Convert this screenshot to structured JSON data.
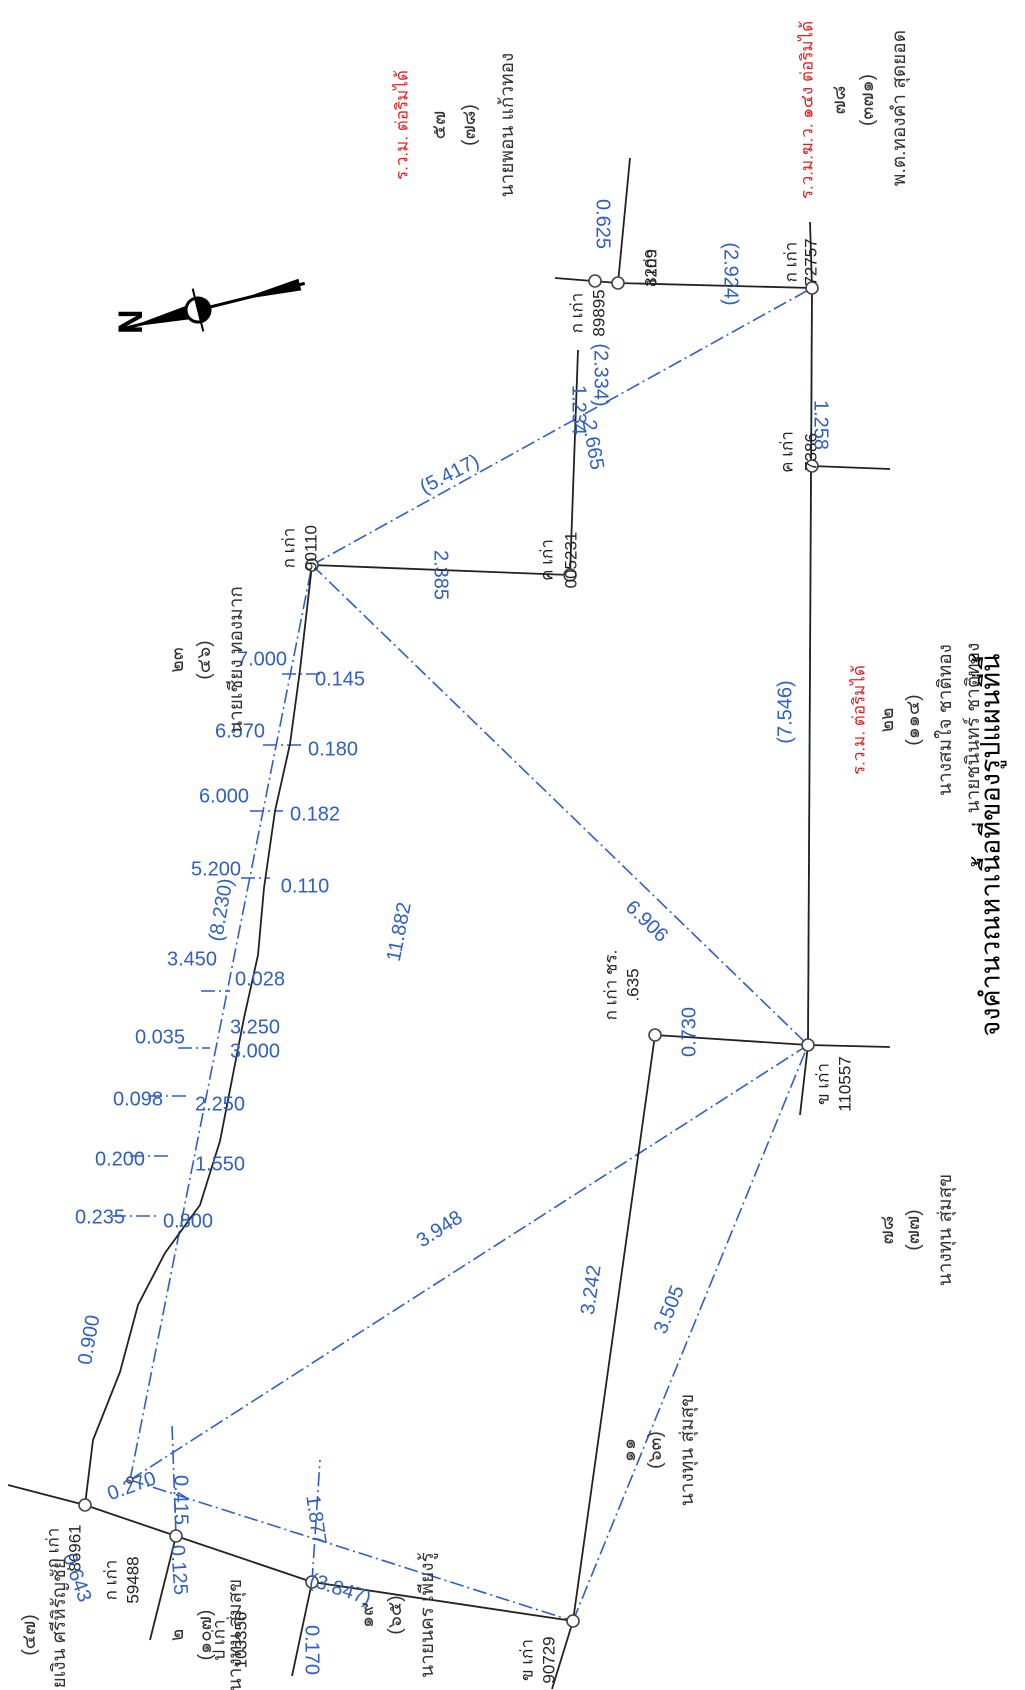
{
  "question": "จงคำนวณหาเนื้อที่ของรูปแผนที่นี้",
  "colors": {
    "boundary": "#222222",
    "survey": "#2f5fc4",
    "note": "#e02020",
    "owner": "#333333"
  },
  "north_arrow": {
    "icon": "north-arrow-icon",
    "letter": "N"
  },
  "stations": [
    {
      "label": "ก เก่า",
      "number": "89895"
    },
    {
      "label": "ง เก่า",
      "number": "3209"
    },
    {
      "label": "ก เก่า",
      "number": "72757"
    },
    {
      "label": "ค เก่า",
      "number": "7386"
    },
    {
      "label": "ค เก่า",
      "number": "005231"
    },
    {
      "label": "ก เก่า",
      "number": "90110"
    },
    {
      "label": "ข เก่า",
      "number": "110557"
    },
    {
      "label": "ก เก่า ชร.",
      "number": ".635"
    },
    {
      "label": "ข เก่า",
      "number": "90729"
    },
    {
      "label": "ป เก่า",
      "number": "103356"
    },
    {
      "label": "ก เก่า",
      "number": "59488"
    },
    {
      "label": "ก เก่า",
      "number": "86961"
    }
  ],
  "measurements": [
    "0.625",
    "(2.924)",
    "(2.334)",
    "1.234",
    "2.665",
    "1.258",
    "(5.417)",
    "2.385",
    "(7.546)",
    "11.882",
    "6.906",
    "0.730",
    "3.948",
    "3.242",
    "3.505",
    "(3.847)",
    "1.877",
    "0.170",
    "0.125",
    "0.643",
    "0.415",
    "0.270",
    "0.900",
    "7.000",
    "0.145",
    "6.570",
    "0.180",
    "6.000",
    "0.182",
    "5.200",
    "0.110",
    "(8.230)",
    "3.450",
    "0.028",
    "3.250",
    "0.035",
    "3.000",
    "0.098",
    "2.250",
    "0.200",
    "1.550",
    "0.235",
    "0.800"
  ],
  "parcels": [
    {
      "no": "๕๗",
      "sub": "(๗๘)",
      "owner": "นายพอน แก้วทอง",
      "note": "ร.ว.ม. ต่อริมได้"
    },
    {
      "no": "๗๘",
      "sub": "(๓๗๑)",
      "owner": "พ.ต.ทองคำ สุดยอด",
      "note": "ร.ว.ม.ฆ.ว. ๑๔ง ต่อริมได้"
    },
    {
      "no": "๒๓",
      "sub": "(๔๖)",
      "owner": "นายเชียง ทองมาก",
      "note": ""
    },
    {
      "no": "๒๒",
      "sub": "(๑๑๔)",
      "owner": "นางสมใจ ชาติทอง",
      "owner2": "นายชนินทร์ ชาติทอง",
      "note": "ร.ว.ม. ต่อริมได้"
    },
    {
      "no": "๗๘",
      "sub": "(๗๗)",
      "owner": "นางทุน สุ่มสุข",
      "note": ""
    },
    {
      "no": "๑๑",
      "sub": "(๖๓)",
      "owner": "นางทุน สุ่มสุข",
      "note": ""
    },
    {
      "no": "(๔๗)",
      "sub": "",
      "owner": "นายเงิน ศรีหิรัญชัย",
      "note": ""
    },
    {
      "no": "๒",
      "sub": "(๑๐๗)",
      "owner": "นางทุน สุ่มสุข",
      "note": ""
    },
    {
      "no": "๑๙",
      "sub": "(๖๕)",
      "owner": "นายนคร เพียงรู้",
      "note": ""
    }
  ]
}
